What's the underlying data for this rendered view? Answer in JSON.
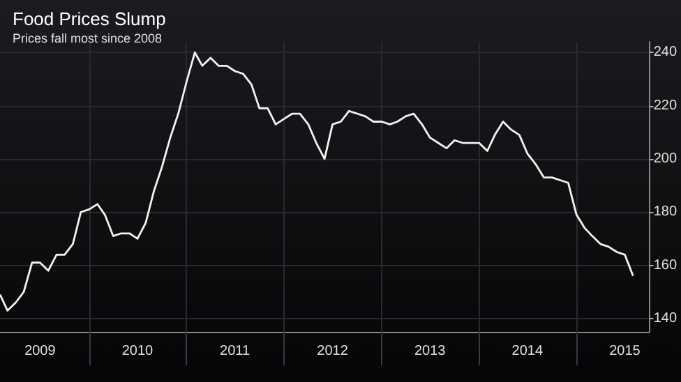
{
  "chart_data": {
    "type": "line",
    "title": "Food Prices Slump",
    "subtitle": "Prices fall most since 2008",
    "x": [
      "2009-02",
      "2009-03",
      "2009-04",
      "2009-05",
      "2009-06",
      "2009-07",
      "2009-08",
      "2009-09",
      "2009-10",
      "2009-11",
      "2009-12",
      "2010-01",
      "2010-02",
      "2010-03",
      "2010-04",
      "2010-05",
      "2010-06",
      "2010-07",
      "2010-08",
      "2010-09",
      "2010-10",
      "2010-11",
      "2010-12",
      "2011-01",
      "2011-02",
      "2011-03",
      "2011-04",
      "2011-05",
      "2011-06",
      "2011-07",
      "2011-08",
      "2011-09",
      "2011-10",
      "2011-11",
      "2011-12",
      "2012-01",
      "2012-02",
      "2012-03",
      "2012-04",
      "2012-05",
      "2012-06",
      "2012-07",
      "2012-08",
      "2012-09",
      "2012-10",
      "2012-11",
      "2012-12",
      "2013-01",
      "2013-02",
      "2013-03",
      "2013-04",
      "2013-05",
      "2013-06",
      "2013-07",
      "2013-08",
      "2013-09",
      "2013-10",
      "2013-11",
      "2013-12",
      "2014-01",
      "2014-02",
      "2014-03",
      "2014-04",
      "2014-05",
      "2014-06",
      "2014-07",
      "2014-08",
      "2014-09",
      "2014-10",
      "2014-11",
      "2014-12",
      "2015-01",
      "2015-02",
      "2015-03",
      "2015-04",
      "2015-05",
      "2015-06",
      "2015-07",
      "2015-08"
    ],
    "series": [
      {
        "color": "#f2f2f2",
        "values": [
          149,
          143,
          146,
          150,
          161,
          161,
          158,
          164,
          164,
          168,
          180,
          181,
          183,
          179,
          171,
          172,
          172,
          170,
          176,
          188,
          197,
          208,
          217,
          229,
          240,
          235,
          238,
          235,
          235,
          233,
          232,
          228,
          219,
          219,
          213,
          215,
          217,
          217,
          213,
          206,
          200,
          213,
          214,
          218,
          217,
          216,
          214,
          214,
          213,
          214,
          216,
          217,
          213,
          208,
          206,
          204,
          207,
          206,
          206,
          206,
          203,
          209,
          214,
          211,
          209,
          202,
          198,
          193,
          193,
          192,
          191,
          179,
          174,
          171,
          168,
          167,
          165,
          164,
          156
        ]
      }
    ],
    "xlim": [
      "2009-02",
      "2015-10"
    ],
    "xticks": [
      {
        "value": "2009-07",
        "label": "2009"
      },
      {
        "value": "2010-01",
        "label": null
      },
      {
        "value": "2010-07",
        "label": "2010"
      },
      {
        "value": "2011-01",
        "label": null
      },
      {
        "value": "2011-07",
        "label": "2011"
      },
      {
        "value": "2012-01",
        "label": null
      },
      {
        "value": "2012-07",
        "label": "2012"
      },
      {
        "value": "2013-01",
        "label": null
      },
      {
        "value": "2013-07",
        "label": "2013"
      },
      {
        "value": "2014-01",
        "label": null
      },
      {
        "value": "2014-07",
        "label": "2014"
      },
      {
        "value": "2015-01",
        "label": null
      },
      {
        "value": "2015-07",
        "label": "2015"
      }
    ],
    "ylim": [
      135,
      244
    ],
    "yticks": [
      140,
      160,
      180,
      200,
      220,
      240
    ],
    "grid": true,
    "marker": "none",
    "line_style": "solid"
  }
}
